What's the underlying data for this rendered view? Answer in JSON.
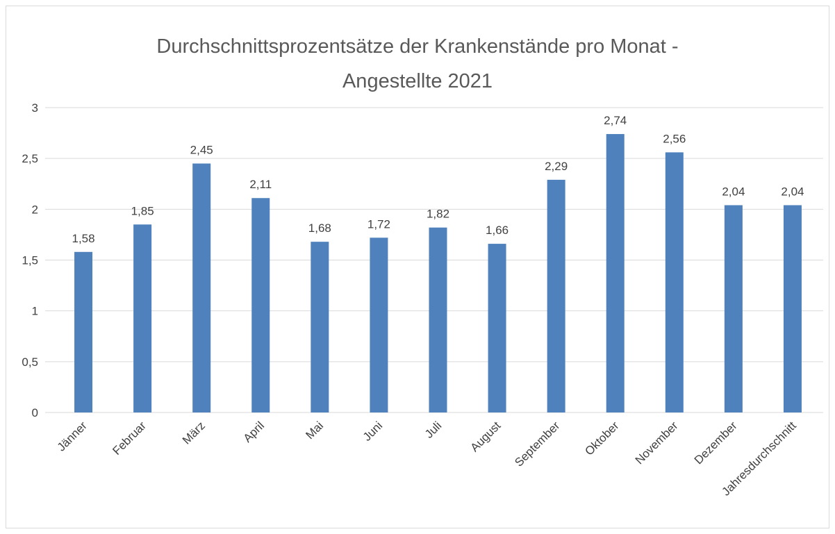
{
  "chart_data": {
    "type": "bar",
    "title": "Durchschnittsprozentsätze der Krankenstände pro Monat - Angestellte 2021",
    "categories": [
      "Jänner",
      "Februar",
      "März",
      "April",
      "Mai",
      "Juni",
      "Juli",
      "August",
      "September",
      "Oktober",
      "November",
      "Dezember",
      "Jahresdurchschnitt"
    ],
    "values": [
      1.58,
      1.85,
      2.45,
      2.11,
      1.68,
      1.72,
      1.82,
      1.66,
      2.29,
      2.74,
      2.56,
      2.04,
      2.04
    ],
    "value_labels": [
      "1,58",
      "1,85",
      "2,45",
      "2,11",
      "1,68",
      "1,72",
      "1,82",
      "1,66",
      "2,29",
      "2,74",
      "2,56",
      "2,04",
      "2,04"
    ],
    "color": "#4f81bd",
    "ylim": [
      0,
      3
    ],
    "yticks": [
      0,
      {
        "value": 0.5,
        "label": "0,5"
      },
      1,
      {
        "value": 1.5,
        "label": "1,5"
      },
      2,
      {
        "value": 2.5,
        "label": "2,5"
      },
      3
    ],
    "grid": true
  }
}
